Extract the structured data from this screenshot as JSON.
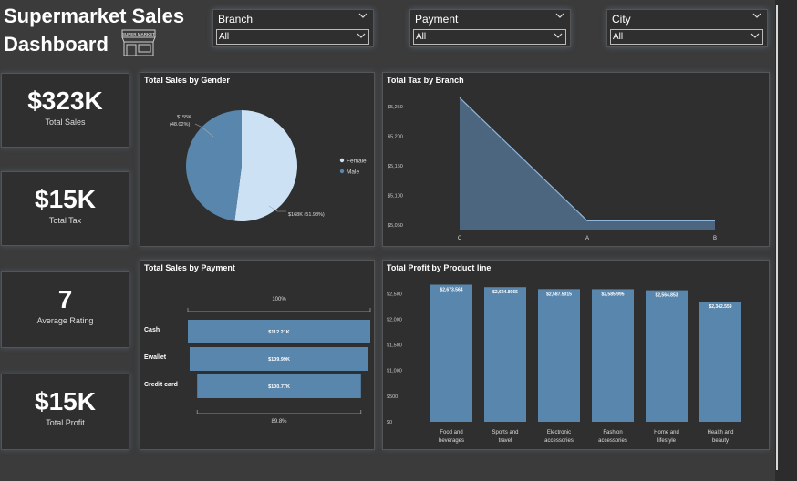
{
  "header": {
    "title_line1": "Supermarket Sales",
    "title_line2": "Dashboard",
    "store_sign": "SUPER MARKET"
  },
  "slicers": [
    {
      "label": "Branch",
      "value": "All"
    },
    {
      "label": "Payment",
      "value": "All"
    },
    {
      "label": "City",
      "value": "All"
    }
  ],
  "kpis": [
    {
      "value": "$323K",
      "caption": "Total Sales"
    },
    {
      "value": "$15K",
      "caption": "Total Tax"
    },
    {
      "value": "7",
      "caption": "Average Rating"
    },
    {
      "value": "$15K",
      "caption": "Total Profit"
    }
  ],
  "colors": {
    "female": "#cde1f4",
    "male": "#5886ad",
    "bar": "#5886ad",
    "area": "#51708e"
  },
  "chart_data": [
    {
      "type": "pie",
      "title": "Total Sales by Gender",
      "slices": [
        {
          "name": "Female",
          "value": 168,
          "label": "$168K (51.98%)"
        },
        {
          "name": "Male",
          "value": 155,
          "label": "$155K (48.02%)"
        }
      ],
      "legend": [
        "Female",
        "Male"
      ],
      "legend_position": "right"
    },
    {
      "type": "area",
      "title": "Total Tax by Branch",
      "categories": [
        "C",
        "A",
        "B"
      ],
      "values": [
        5265,
        5057,
        5057
      ],
      "yticks": [
        "$5,250",
        "$5,200",
        "$5,150",
        "$5,100",
        "$5,050"
      ],
      "ylim": [
        5050,
        5250
      ]
    },
    {
      "type": "bar",
      "title": "Total Sales by Payment",
      "categories": [
        "Cash",
        "Ewallet",
        "Credit card"
      ],
      "values": [
        112.21,
        109.99,
        100.77
      ],
      "value_labels": [
        "$112.21K",
        "$109.99K",
        "$100.77K"
      ],
      "top_label": "100%",
      "bottom_label": "89.8%"
    },
    {
      "type": "bar",
      "title": "Total Profit by Product line",
      "categories": [
        "Food and beverages",
        "Sports and travel",
        "Electronic accessories",
        "Fashion accessories",
        "Home and lifestyle",
        "Health and beauty"
      ],
      "values": [
        2673.564,
        2624.8965,
        2587.5015,
        2585.995,
        2564.853,
        2342.559
      ],
      "value_labels": [
        "$2,673.564",
        "$2,624.8965",
        "$2,587.5015",
        "$2,585.995",
        "$2,564.853",
        "$2,342.559"
      ],
      "yticks": [
        "$2,500",
        "$2,000",
        "$1,500",
        "$1,000",
        "$500",
        "$0"
      ],
      "ylim": [
        0,
        2700
      ]
    }
  ]
}
